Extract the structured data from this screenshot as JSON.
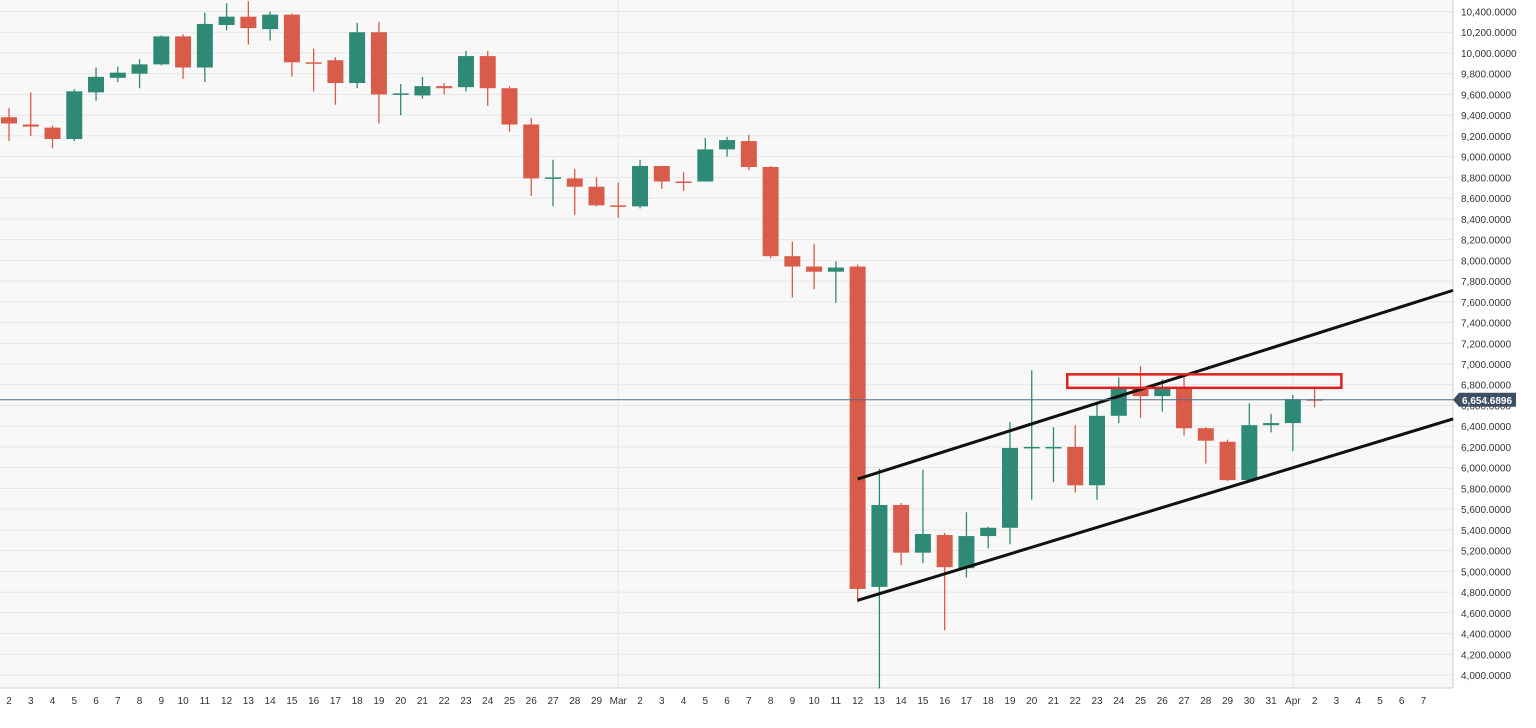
{
  "chart_data": {
    "type": "candlestick",
    "ylim": [
      3900,
      10500
    ],
    "grid": true,
    "y_ticks": [
      "4,000.0000",
      "4,200.0000",
      "4,400.0000",
      "4,600.0000",
      "4,800.0000",
      "5,000.0000",
      "5,200.0000",
      "5,400.0000",
      "5,600.0000",
      "5,800.0000",
      "6,000.0000",
      "6,200.0000",
      "6,400.0000",
      "6,600.0000",
      "6,800.0000",
      "7,000.0000",
      "7,200.0000",
      "7,400.0000",
      "7,600.0000",
      "7,800.0000",
      "8,000.0000",
      "8,200.0000",
      "8,400.0000",
      "8,600.0000",
      "8,800.0000",
      "9,000.0000",
      "9,200.0000",
      "9,400.0000",
      "9,600.0000",
      "9,800.0000",
      "10,000.0000",
      "10,200.0000",
      "10,400.0000"
    ],
    "x_ticks": [
      "2",
      "3",
      "4",
      "5",
      "6",
      "7",
      "8",
      "9",
      "10",
      "11",
      "12",
      "13",
      "14",
      "15",
      "16",
      "17",
      "18",
      "19",
      "20",
      "21",
      "22",
      "23",
      "24",
      "25",
      "26",
      "27",
      "28",
      "29",
      "Mar",
      "2",
      "3",
      "4",
      "5",
      "6",
      "7",
      "8",
      "9",
      "10",
      "11",
      "12",
      "13",
      "14",
      "15",
      "16",
      "17",
      "18",
      "19",
      "20",
      "21",
      "22",
      "23",
      "24",
      "25",
      "26",
      "27",
      "28",
      "29",
      "30",
      "31",
      "Apr",
      "2",
      "3",
      "4",
      "5",
      "6",
      "7"
    ],
    "last_price": {
      "value": 6654.6896,
      "label": "6,654.6896"
    },
    "colors": {
      "up": "#2f8a75",
      "down": "#d95c4a",
      "price_line": "#4a6f8a",
      "price_label_bg": "#3c4f63",
      "zone": "#e02020",
      "channel": "#111111"
    },
    "candles": [
      {
        "date": "2",
        "open": 9380,
        "high": 9470,
        "low": 9150,
        "close": 9320
      },
      {
        "date": "3",
        "open": 9310,
        "high": 9620,
        "low": 9200,
        "close": 9290
      },
      {
        "date": "4",
        "open": 9280,
        "high": 9300,
        "low": 9080,
        "close": 9170
      },
      {
        "date": "5",
        "open": 9170,
        "high": 9650,
        "low": 9150,
        "close": 9630
      },
      {
        "date": "6",
        "open": 9620,
        "high": 9860,
        "low": 9540,
        "close": 9770
      },
      {
        "date": "7",
        "open": 9760,
        "high": 9870,
        "low": 9720,
        "close": 9810
      },
      {
        "date": "8",
        "open": 9800,
        "high": 9940,
        "low": 9660,
        "close": 9890
      },
      {
        "date": "9",
        "open": 9890,
        "high": 10170,
        "low": 9880,
        "close": 10160
      },
      {
        "date": "10",
        "open": 10160,
        "high": 10180,
        "low": 9750,
        "close": 9860
      },
      {
        "date": "11",
        "open": 9860,
        "high": 10390,
        "low": 9720,
        "close": 10280
      },
      {
        "date": "12",
        "open": 10270,
        "high": 10480,
        "low": 10220,
        "close": 10350
      },
      {
        "date": "13",
        "open": 10350,
        "high": 10500,
        "low": 10080,
        "close": 10240
      },
      {
        "date": "14",
        "open": 10230,
        "high": 10400,
        "low": 10120,
        "close": 10370
      },
      {
        "date": "15",
        "open": 10370,
        "high": 10380,
        "low": 9770,
        "close": 9910
      },
      {
        "date": "16",
        "open": 9910,
        "high": 10040,
        "low": 9630,
        "close": 9900
      },
      {
        "date": "17",
        "open": 9930,
        "high": 9960,
        "low": 9500,
        "close": 9710
      },
      {
        "date": "18",
        "open": 9710,
        "high": 10290,
        "low": 9660,
        "close": 10200
      },
      {
        "date": "19",
        "open": 10200,
        "high": 10300,
        "low": 9320,
        "close": 9600
      },
      {
        "date": "20",
        "open": 9600,
        "high": 9700,
        "low": 9400,
        "close": 9610
      },
      {
        "date": "21",
        "open": 9590,
        "high": 9770,
        "low": 9560,
        "close": 9680
      },
      {
        "date": "22",
        "open": 9680,
        "high": 9710,
        "low": 9600,
        "close": 9660
      },
      {
        "date": "23",
        "open": 9670,
        "high": 10020,
        "low": 9630,
        "close": 9970
      },
      {
        "date": "24",
        "open": 9970,
        "high": 10020,
        "low": 9490,
        "close": 9660
      },
      {
        "date": "25",
        "open": 9660,
        "high": 9680,
        "low": 9240,
        "close": 9310
      },
      {
        "date": "26",
        "open": 9310,
        "high": 9370,
        "low": 8620,
        "close": 8790
      },
      {
        "date": "27",
        "open": 8790,
        "high": 8970,
        "low": 8520,
        "close": 8800
      },
      {
        "date": "28",
        "open": 8790,
        "high": 8880,
        "low": 8440,
        "close": 8710
      },
      {
        "date": "29",
        "open": 8710,
        "high": 8800,
        "low": 8520,
        "close": 8530
      },
      {
        "date": "Mar",
        "open": 8530,
        "high": 8750,
        "low": 8410,
        "close": 8520
      },
      {
        "date": "2",
        "open": 8520,
        "high": 8970,
        "low": 8500,
        "close": 8910
      },
      {
        "date": "3",
        "open": 8910,
        "high": 8910,
        "low": 8690,
        "close": 8760
      },
      {
        "date": "4",
        "open": 8760,
        "high": 8850,
        "low": 8670,
        "close": 8750
      },
      {
        "date": "5",
        "open": 8760,
        "high": 9180,
        "low": 8760,
        "close": 9070
      },
      {
        "date": "6",
        "open": 9070,
        "high": 9190,
        "low": 9000,
        "close": 9160
      },
      {
        "date": "7",
        "open": 9150,
        "high": 9210,
        "low": 8870,
        "close": 8900
      },
      {
        "date": "8",
        "open": 8900,
        "high": 8910,
        "low": 8020,
        "close": 8040
      },
      {
        "date": "9",
        "open": 8040,
        "high": 8180,
        "low": 7640,
        "close": 7940
      },
      {
        "date": "10",
        "open": 7940,
        "high": 8160,
        "low": 7720,
        "close": 7890
      },
      {
        "date": "11",
        "open": 7890,
        "high": 7990,
        "low": 7590,
        "close": 7930
      },
      {
        "date": "12",
        "open": 7940,
        "high": 7960,
        "low": 4700,
        "close": 4830
      },
      {
        "date": "13",
        "open": 4850,
        "high": 5990,
        "low": 3870,
        "close": 5640
      },
      {
        "date": "14",
        "open": 5640,
        "high": 5660,
        "low": 5060,
        "close": 5180
      },
      {
        "date": "15",
        "open": 5180,
        "high": 5980,
        "low": 5080,
        "close": 5360
      },
      {
        "date": "16",
        "open": 5350,
        "high": 5370,
        "low": 4430,
        "close": 5040
      },
      {
        "date": "17",
        "open": 5030,
        "high": 5570,
        "low": 4940,
        "close": 5340
      },
      {
        "date": "18",
        "open": 5340,
        "high": 5430,
        "low": 5220,
        "close": 5420
      },
      {
        "date": "19",
        "open": 5420,
        "high": 6440,
        "low": 5260,
        "close": 6190
      },
      {
        "date": "20",
        "open": 6190,
        "high": 6940,
        "low": 5690,
        "close": 6200
      },
      {
        "date": "21",
        "open": 6200,
        "high": 6390,
        "low": 5860,
        "close": 6200
      },
      {
        "date": "22",
        "open": 6200,
        "high": 6410,
        "low": 5760,
        "close": 5830
      },
      {
        "date": "23",
        "open": 5830,
        "high": 6610,
        "low": 5690,
        "close": 6500
      },
      {
        "date": "24",
        "open": 6500,
        "high": 6870,
        "low": 6430,
        "close": 6780
      },
      {
        "date": "25",
        "open": 6780,
        "high": 6980,
        "low": 6480,
        "close": 6690
      },
      {
        "date": "26",
        "open": 6690,
        "high": 6850,
        "low": 6540,
        "close": 6760
      },
      {
        "date": "27",
        "open": 6760,
        "high": 6870,
        "low": 6310,
        "close": 6380
      },
      {
        "date": "28",
        "open": 6380,
        "high": 6390,
        "low": 6040,
        "close": 6260
      },
      {
        "date": "29",
        "open": 6250,
        "high": 6270,
        "low": 5870,
        "close": 5880
      },
      {
        "date": "30",
        "open": 5880,
        "high": 6620,
        "low": 5860,
        "close": 6410
      },
      {
        "date": "31",
        "open": 6410,
        "high": 6520,
        "low": 6340,
        "close": 6430
      },
      {
        "date": "Apr",
        "open": 6430,
        "high": 6700,
        "low": 6160,
        "close": 6660
      },
      {
        "date": "2",
        "open": 6660,
        "high": 6780,
        "low": 6580,
        "close": 6650
      }
    ]
  }
}
